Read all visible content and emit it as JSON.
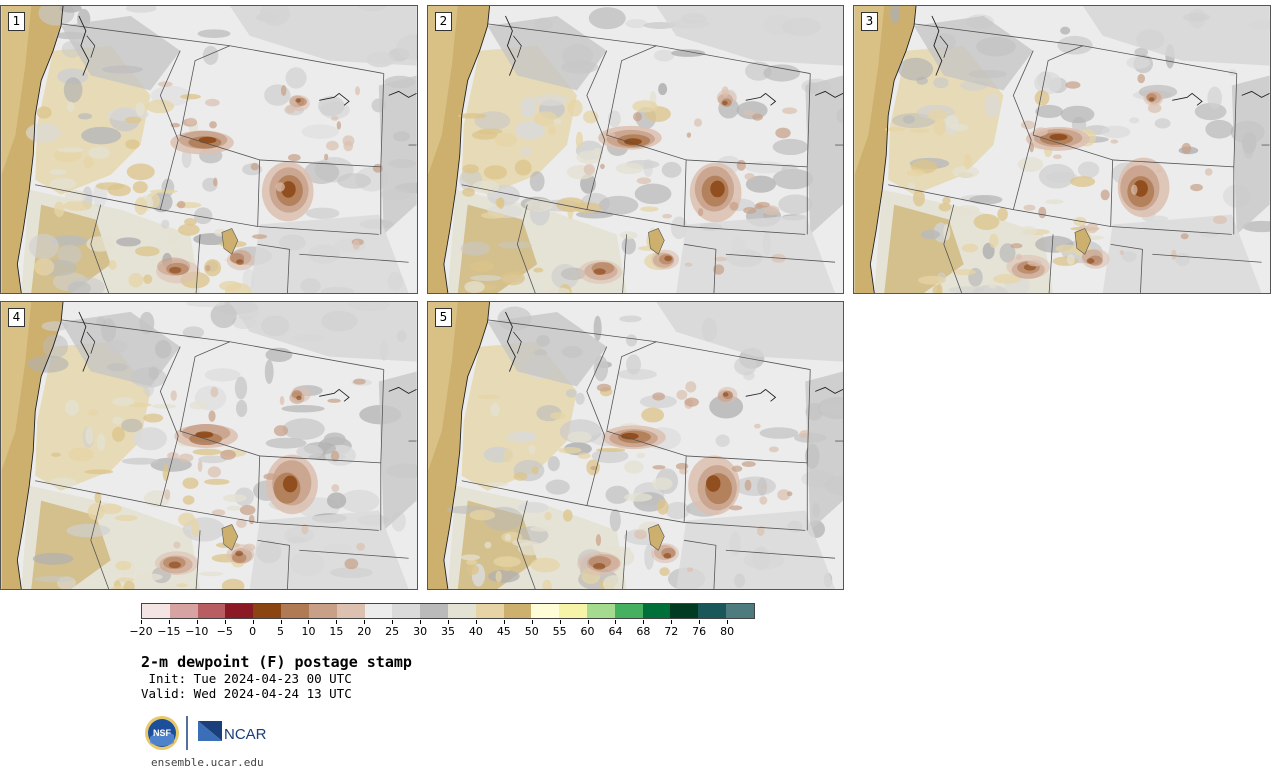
{
  "figure": {
    "title": "2-m dewpoint (F) postage stamp",
    "init_line": " Init: Tue 2024-04-23 00 UTC",
    "valid_line": "Valid: Wed 2024-04-24 13 UTC",
    "website": "ensemble.ucar.edu"
  },
  "panels": [
    {
      "label": "1"
    },
    {
      "label": "2"
    },
    {
      "label": "3"
    },
    {
      "label": "4"
    },
    {
      "label": "5"
    }
  ],
  "legend": {
    "tick_labels": [
      "−20",
      "−15",
      "−10",
      "−5",
      "0",
      "5",
      "10",
      "15",
      "20",
      "25",
      "30",
      "35",
      "40",
      "45",
      "50",
      "55",
      "60",
      "64",
      "68",
      "72",
      "76",
      "80"
    ],
    "colors": [
      "#f4e4e4",
      "#d7a2a2",
      "#b85d62",
      "#8c1a24",
      "#8b4513",
      "#b07a55",
      "#c8a088",
      "#dcc0b0",
      "#ececec",
      "#dadada",
      "#bababa",
      "#e4e2d2",
      "#e6d4a6",
      "#cdb06d",
      "#fefdd8",
      "#f6f4a8",
      "#a4db8e",
      "#44b060",
      "#00703a",
      "#003b22",
      "#19575a",
      "#4e7c7e"
    ]
  },
  "logos": {
    "nsf": "NSF",
    "ncar": "NCAR"
  }
}
